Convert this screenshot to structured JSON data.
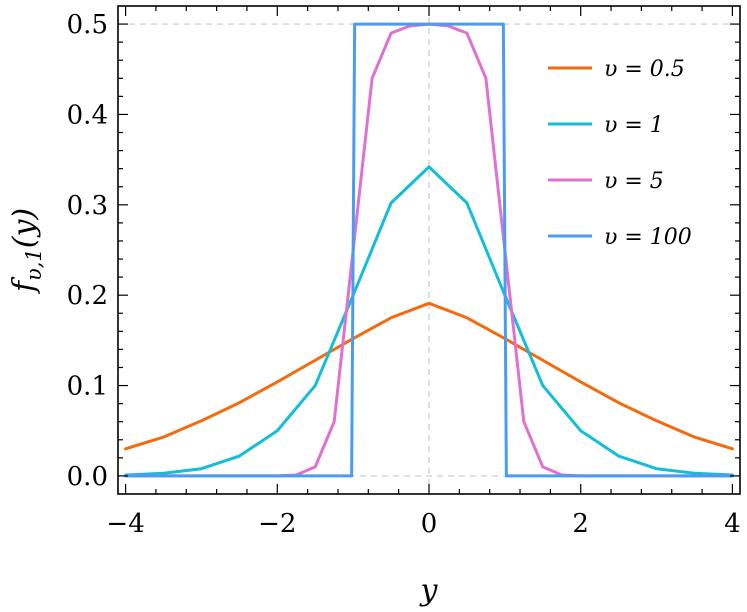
{
  "chart_data": {
    "type": "line",
    "title": "",
    "xlabel": "y",
    "ylabel": "fυ,1(y)",
    "ylabel_main": "f",
    "ylabel_sub": "υ,1",
    "ylabel_arg": "(y)",
    "xlim": [
      -4.1,
      4.1
    ],
    "ylim": [
      -0.02,
      0.52
    ],
    "x_ticks": [
      -4,
      -2,
      0,
      2,
      4
    ],
    "x_tick_labels": [
      "−4",
      "−2",
      "0",
      "2",
      "4"
    ],
    "y_ticks": [
      0.0,
      0.1,
      0.2,
      0.3,
      0.4,
      0.5
    ],
    "y_tick_labels": [
      "0.0",
      "0.1",
      "0.2",
      "0.3",
      "0.4",
      "0.5"
    ],
    "reference_lines": {
      "x": [
        0
      ],
      "y": [
        0,
        0.5
      ]
    },
    "grid": false,
    "legend_position": "top-right",
    "series": [
      {
        "name": "υ = 0.5",
        "color": "#f26b0f",
        "x": [
          -4,
          -3.5,
          -3,
          -2.5,
          -2,
          -1.5,
          -1,
          -0.5,
          0,
          0.5,
          1,
          1.5,
          2,
          2.5,
          3,
          3.5,
          4
        ],
        "values": [
          0.03,
          0.043,
          0.061,
          0.081,
          0.104,
          0.128,
          0.152,
          0.175,
          0.191,
          0.175,
          0.152,
          0.128,
          0.104,
          0.081,
          0.061,
          0.043,
          0.03
        ]
      },
      {
        "name": "υ = 1",
        "color": "#14bdd8",
        "x": [
          -4,
          -3.5,
          -3,
          -2.5,
          -2,
          -1.5,
          -1,
          -0.5,
          0,
          0.5,
          1,
          1.5,
          2,
          2.5,
          3,
          3.5,
          4
        ],
        "values": [
          0.001,
          0.003,
          0.008,
          0.022,
          0.05,
          0.1,
          0.2,
          0.302,
          0.342,
          0.302,
          0.2,
          0.1,
          0.05,
          0.022,
          0.008,
          0.003,
          0.001
        ]
      },
      {
        "name": "υ = 5",
        "color": "#e070d2",
        "x": [
          -4,
          -2,
          -1.75,
          -1.5,
          -1.25,
          -1,
          -0.75,
          -0.5,
          -0.25,
          0,
          0.25,
          0.5,
          0.75,
          1,
          1.25,
          1.5,
          1.75,
          2,
          4
        ],
        "values": [
          0,
          0,
          0.001,
          0.01,
          0.06,
          0.25,
          0.44,
          0.49,
          0.498,
          0.5,
          0.498,
          0.49,
          0.44,
          0.25,
          0.06,
          0.01,
          0.001,
          0,
          0
        ]
      },
      {
        "name": "υ = 100",
        "color": "#4a9cf2",
        "x": [
          -4,
          -1.02,
          -1,
          -0.98,
          0,
          0.98,
          1,
          1.02,
          4
        ],
        "values": [
          0,
          0,
          0.25,
          0.5,
          0.5,
          0.5,
          0.25,
          0,
          0
        ]
      }
    ]
  }
}
